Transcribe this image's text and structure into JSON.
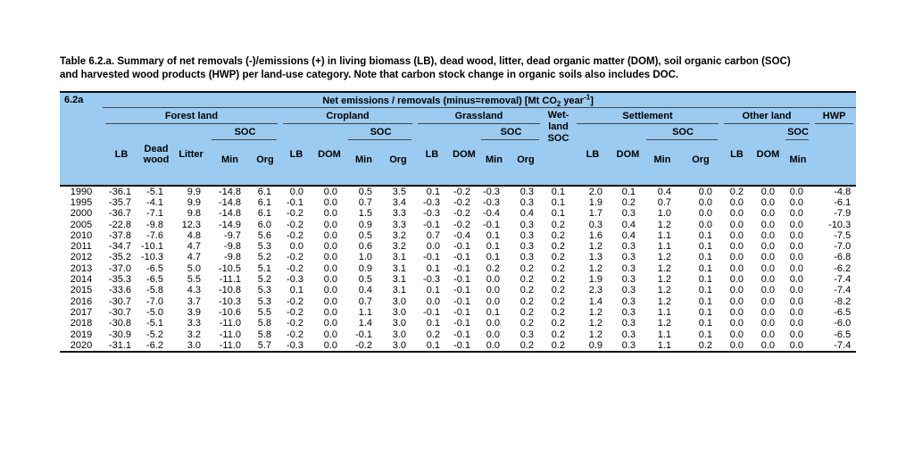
{
  "caption": {
    "line1": "Table 6.2.a. Summary of net removals (-)/emissions (+) in living biomass (LB), dead wood, litter, dead organic matter (DOM), soil organic carbon (SOC)",
    "line2": "and harvested wood products (HWP) per land-use category. Note that carbon stock change in organic soils also includes DOC."
  },
  "colors": {
    "header_background": "#9CCBF1"
  },
  "table": {
    "corner_label": "6.2a",
    "unit": {
      "prefix": "Net emissions / removals (minus=removal) [Mt CO",
      "sub": "2",
      "mid": " year",
      "sup": "-1",
      "suffix": "]"
    },
    "groups": {
      "forest": "Forest land",
      "cropland": "Cropland",
      "grassland": "Grassland",
      "wetland_lines": [
        "Wet-",
        "land",
        "SOC"
      ],
      "settlement": "Settlement",
      "other": "Other land",
      "hwp": "HWP"
    },
    "sub_labels": {
      "lb": "LB",
      "dead_wood": "Dead wood",
      "litter": "Litter",
      "dom": "DOM",
      "soc": "SOC",
      "min": "Min",
      "org": "Org"
    },
    "column_keys": [
      "forest_lb",
      "forest_dead_wood",
      "forest_litter",
      "forest_soc_min",
      "forest_soc_org",
      "cropland_lb",
      "cropland_dom",
      "cropland_soc_min",
      "cropland_soc_org",
      "grassland_lb",
      "grassland_dom",
      "grassland_soc_min",
      "grassland_soc_org",
      "wetland_soc",
      "settlement_lb",
      "settlement_dom",
      "settlement_soc_min",
      "settlement_soc_org",
      "otherland_lb",
      "otherland_dom",
      "otherland_soc_min",
      "hwp"
    ],
    "rows": [
      {
        "year": "1990",
        "values": [
          "-36.1",
          "-5.1",
          "9.9",
          "-14.8",
          "6.1",
          "0.0",
          "0.0",
          "0.5",
          "3.5",
          "0.1",
          "-0.2",
          "-0.3",
          "0.3",
          "0.1",
          "2.0",
          "0.1",
          "0.4",
          "0.0",
          "0.2",
          "0.0",
          "0.0",
          "-4.8"
        ]
      },
      {
        "year": "1995",
        "values": [
          "-35.7",
          "-4.1",
          "9.9",
          "-14.8",
          "6.1",
          "-0.1",
          "0.0",
          "0.7",
          "3.4",
          "-0.3",
          "-0.2",
          "-0.3",
          "0.3",
          "0.1",
          "1.9",
          "0.2",
          "0.7",
          "0.0",
          "0.0",
          "0.0",
          "0.0",
          "-6.1"
        ]
      },
      {
        "year": "2000",
        "values": [
          "-36.7",
          "-7.1",
          "9.8",
          "-14.8",
          "6.1",
          "-0.2",
          "0.0",
          "1.5",
          "3.3",
          "-0.3",
          "-0.2",
          "-0.4",
          "0.4",
          "0.1",
          "1.7",
          "0.3",
          "1.0",
          "0.0",
          "0.0",
          "0.0",
          "0.0",
          "-7.9"
        ]
      },
      {
        "year": "2005",
        "values": [
          "-22.8",
          "-9.8",
          "12.3",
          "-14.9",
          "6.0",
          "-0.2",
          "0.0",
          "0.9",
          "3.3",
          "-0.1",
          "-0.2",
          "-0.1",
          "0.3",
          "0.2",
          "0.3",
          "0.4",
          "1.2",
          "0.0",
          "0.0",
          "0.0",
          "0.0",
          "-10.3"
        ]
      },
      {
        "year": "2010",
        "values": [
          "-37.8",
          "-7.6",
          "4.8",
          "-9.7",
          "5.6",
          "-0.2",
          "0.0",
          "0.5",
          "3.2",
          "0.7",
          "-0.4",
          "0.1",
          "0.3",
          "0.2",
          "1.6",
          "0.4",
          "1.1",
          "0.1",
          "0.0",
          "0.0",
          "0.0",
          "-7.5"
        ]
      },
      {
        "year": "2011",
        "values": [
          "-34.7",
          "-10.1",
          "4.7",
          "-9.8",
          "5.3",
          "0.0",
          "0.0",
          "0.6",
          "3.2",
          "0.0",
          "-0.1",
          "0.1",
          "0.3",
          "0.2",
          "1.2",
          "0.3",
          "1.1",
          "0.1",
          "0.0",
          "0.0",
          "0.0",
          "-7.0"
        ]
      },
      {
        "year": "2012",
        "values": [
          "-35.2",
          "-10.3",
          "4.7",
          "-9.8",
          "5.2",
          "-0.2",
          "0.0",
          "1.0",
          "3.1",
          "-0.1",
          "-0.1",
          "0.1",
          "0.3",
          "0.2",
          "1.3",
          "0.3",
          "1.2",
          "0.1",
          "0.0",
          "0.0",
          "0.0",
          "-6.8"
        ]
      },
      {
        "year": "2013",
        "values": [
          "-37.0",
          "-6.5",
          "5.0",
          "-10.5",
          "5.1",
          "-0.2",
          "0.0",
          "0.9",
          "3.1",
          "0.1",
          "-0.1",
          "0.2",
          "0.2",
          "0.2",
          "1.2",
          "0.3",
          "1.2",
          "0.1",
          "0.0",
          "0.0",
          "0.0",
          "-6.2"
        ]
      },
      {
        "year": "2014",
        "values": [
          "-35.3",
          "-6.5",
          "5.5",
          "-11.1",
          "5.2",
          "-0.3",
          "0.0",
          "0.5",
          "3.1",
          "-0.3",
          "-0.1",
          "0.0",
          "0.2",
          "0.2",
          "1.9",
          "0.3",
          "1.2",
          "0.1",
          "0.0",
          "0.0",
          "0.0",
          "-7.4"
        ]
      },
      {
        "year": "2015",
        "values": [
          "-33.6",
          "-5.8",
          "4.3",
          "-10.8",
          "5.3",
          "0.1",
          "0.0",
          "0.4",
          "3.1",
          "0.1",
          "-0.1",
          "0.0",
          "0.2",
          "0.2",
          "2.3",
          "0.3",
          "1.2",
          "0.1",
          "0.0",
          "0.0",
          "0.0",
          "-7.4"
        ]
      },
      {
        "year": "2016",
        "values": [
          "-30.7",
          "-7.0",
          "3.7",
          "-10.3",
          "5.3",
          "-0.2",
          "0.0",
          "0.7",
          "3.0",
          "0.0",
          "-0.1",
          "0.0",
          "0.2",
          "0.2",
          "1.4",
          "0.3",
          "1.2",
          "0.1",
          "0.0",
          "0.0",
          "0.0",
          "-8.2"
        ]
      },
      {
        "year": "2017",
        "values": [
          "-30.7",
          "-5.0",
          "3.9",
          "-10.6",
          "5.5",
          "-0.2",
          "0.0",
          "1.1",
          "3.0",
          "-0.1",
          "-0.1",
          "0.1",
          "0.2",
          "0.2",
          "1.2",
          "0.3",
          "1.1",
          "0.1",
          "0.0",
          "0.0",
          "0.0",
          "-6.5"
        ]
      },
      {
        "year": "2018",
        "values": [
          "-30.8",
          "-5.1",
          "3.3",
          "-11.0",
          "5.8",
          "-0.2",
          "0.0",
          "1.4",
          "3.0",
          "0.1",
          "-0.1",
          "0.0",
          "0.2",
          "0.2",
          "1.2",
          "0.3",
          "1.2",
          "0.1",
          "0.0",
          "0.0",
          "0.0",
          "-6.0"
        ]
      },
      {
        "year": "2019",
        "values": [
          "-30.9",
          "-5.2",
          "3.2",
          "-11.0",
          "5.8",
          "-0.2",
          "0.0",
          "-0.1",
          "3.0",
          "0.2",
          "-0.1",
          "0.0",
          "0.3",
          "0.2",
          "1.2",
          "0.3",
          "1.1",
          "0.1",
          "0.0",
          "0.0",
          "0.0",
          "-6.5"
        ]
      },
      {
        "year": "2020",
        "values": [
          "-31.1",
          "-6.2",
          "3.0",
          "-11.0",
          "5.7",
          "-0.3",
          "0.0",
          "-0.2",
          "3.0",
          "0.1",
          "-0.1",
          "0.0",
          "0.2",
          "0.2",
          "0.9",
          "0.3",
          "1.1",
          "0.2",
          "0.0",
          "0.0",
          "0.0",
          "-7.4"
        ]
      }
    ]
  }
}
